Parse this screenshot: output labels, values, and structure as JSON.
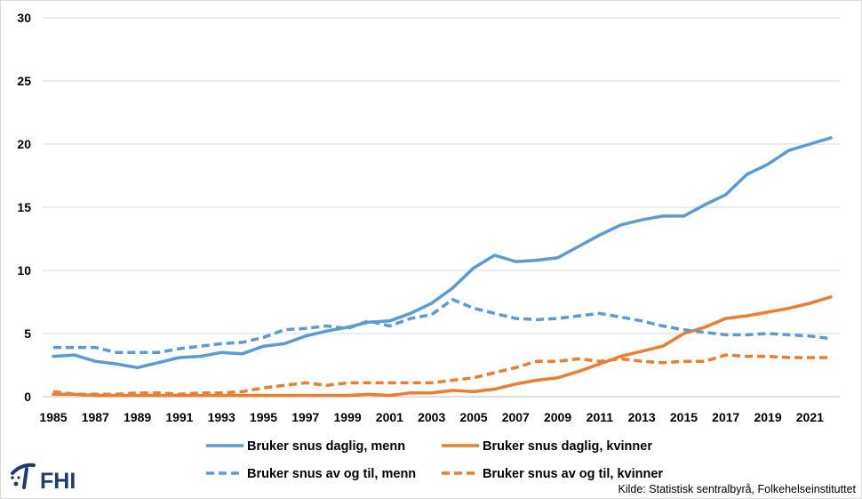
{
  "chart_data": {
    "type": "line",
    "title": "",
    "xlabel": "",
    "ylabel": "",
    "ylim": [
      0,
      30
    ],
    "xlim": [
      1985,
      2022
    ],
    "y_ticks": [
      "0",
      "5",
      "10",
      "15",
      "20",
      "25",
      "30"
    ],
    "x_ticks": [
      "1985",
      "1987",
      "1989",
      "1991",
      "1993",
      "1995",
      "1997",
      "1999",
      "2001",
      "2003",
      "2005",
      "2007",
      "2009",
      "2011",
      "2013",
      "2015",
      "2017",
      "2019",
      "2021"
    ],
    "grid": "horizontal",
    "legend_position": "bottom",
    "x": [
      1985,
      1986,
      1987,
      1988,
      1989,
      1990,
      1991,
      1992,
      1993,
      1994,
      1995,
      1996,
      1997,
      1998,
      1999,
      2000,
      2001,
      2002,
      2003,
      2004,
      2005,
      2006,
      2007,
      2008,
      2009,
      2010,
      2011,
      2012,
      2013,
      2014,
      2015,
      2016,
      2017,
      2018,
      2019,
      2020,
      2021,
      2022
    ],
    "series": [
      {
        "name": "Bruker snus daglig, menn",
        "color": "#5b9bd5",
        "style": "solid",
        "values": [
          3.2,
          3.3,
          2.8,
          2.6,
          2.3,
          2.7,
          3.1,
          3.2,
          3.5,
          3.4,
          4.0,
          4.2,
          4.8,
          5.2,
          5.5,
          5.9,
          6.0,
          6.6,
          7.4,
          8.6,
          10.2,
          11.2,
          10.7,
          10.8,
          11.0,
          11.9,
          12.8,
          13.6,
          14.0,
          14.3,
          14.3,
          15.2,
          16.0,
          17.6,
          18.4,
          19.5,
          20.0,
          20.5
        ]
      },
      {
        "name": "Bruker snus daglig, kvinner",
        "color": "#ed7d31",
        "style": "solid",
        "values": [
          0.2,
          0.2,
          0.1,
          0.1,
          0.1,
          0.1,
          0.1,
          0.1,
          0.1,
          0.1,
          0.1,
          0.1,
          0.1,
          0.1,
          0.1,
          0.2,
          0.1,
          0.3,
          0.3,
          0.5,
          0.4,
          0.6,
          1.0,
          1.3,
          1.5,
          2.0,
          2.6,
          3.2,
          3.6,
          4.0,
          5.0,
          5.5,
          6.2,
          6.4,
          6.7,
          7.0,
          7.4,
          7.9
        ]
      },
      {
        "name": "Bruker snus av og til, menn",
        "color": "#5b9bd5",
        "style": "dashed",
        "values": [
          3.9,
          3.9,
          3.9,
          3.5,
          3.5,
          3.5,
          3.8,
          4.0,
          4.2,
          4.3,
          4.7,
          5.3,
          5.4,
          5.6,
          5.4,
          6.0,
          5.6,
          6.2,
          6.5,
          7.7,
          7.0,
          6.6,
          6.2,
          6.1,
          6.2,
          6.4,
          6.6,
          6.3,
          6.0,
          5.6,
          5.3,
          5.1,
          4.9,
          4.9,
          5.0,
          4.9,
          4.8,
          4.6
        ]
      },
      {
        "name": "Bruker snus av og til, kvinner",
        "color": "#ed7d31",
        "style": "dashed",
        "values": [
          0.4,
          0.2,
          0.2,
          0.2,
          0.3,
          0.3,
          0.2,
          0.3,
          0.3,
          0.4,
          0.7,
          0.9,
          1.1,
          0.9,
          1.1,
          1.1,
          1.1,
          1.1,
          1.1,
          1.3,
          1.5,
          1.9,
          2.3,
          2.8,
          2.8,
          3.0,
          2.8,
          3.0,
          2.8,
          2.7,
          2.8,
          2.8,
          3.3,
          3.2,
          3.2,
          3.1,
          3.1,
          3.1
        ]
      }
    ]
  },
  "source": "Kilde: Statistisk sentralbyrå, Folkehelseinstituttet",
  "logo": {
    "text": "FHI",
    "color": "#1f3c6e"
  }
}
